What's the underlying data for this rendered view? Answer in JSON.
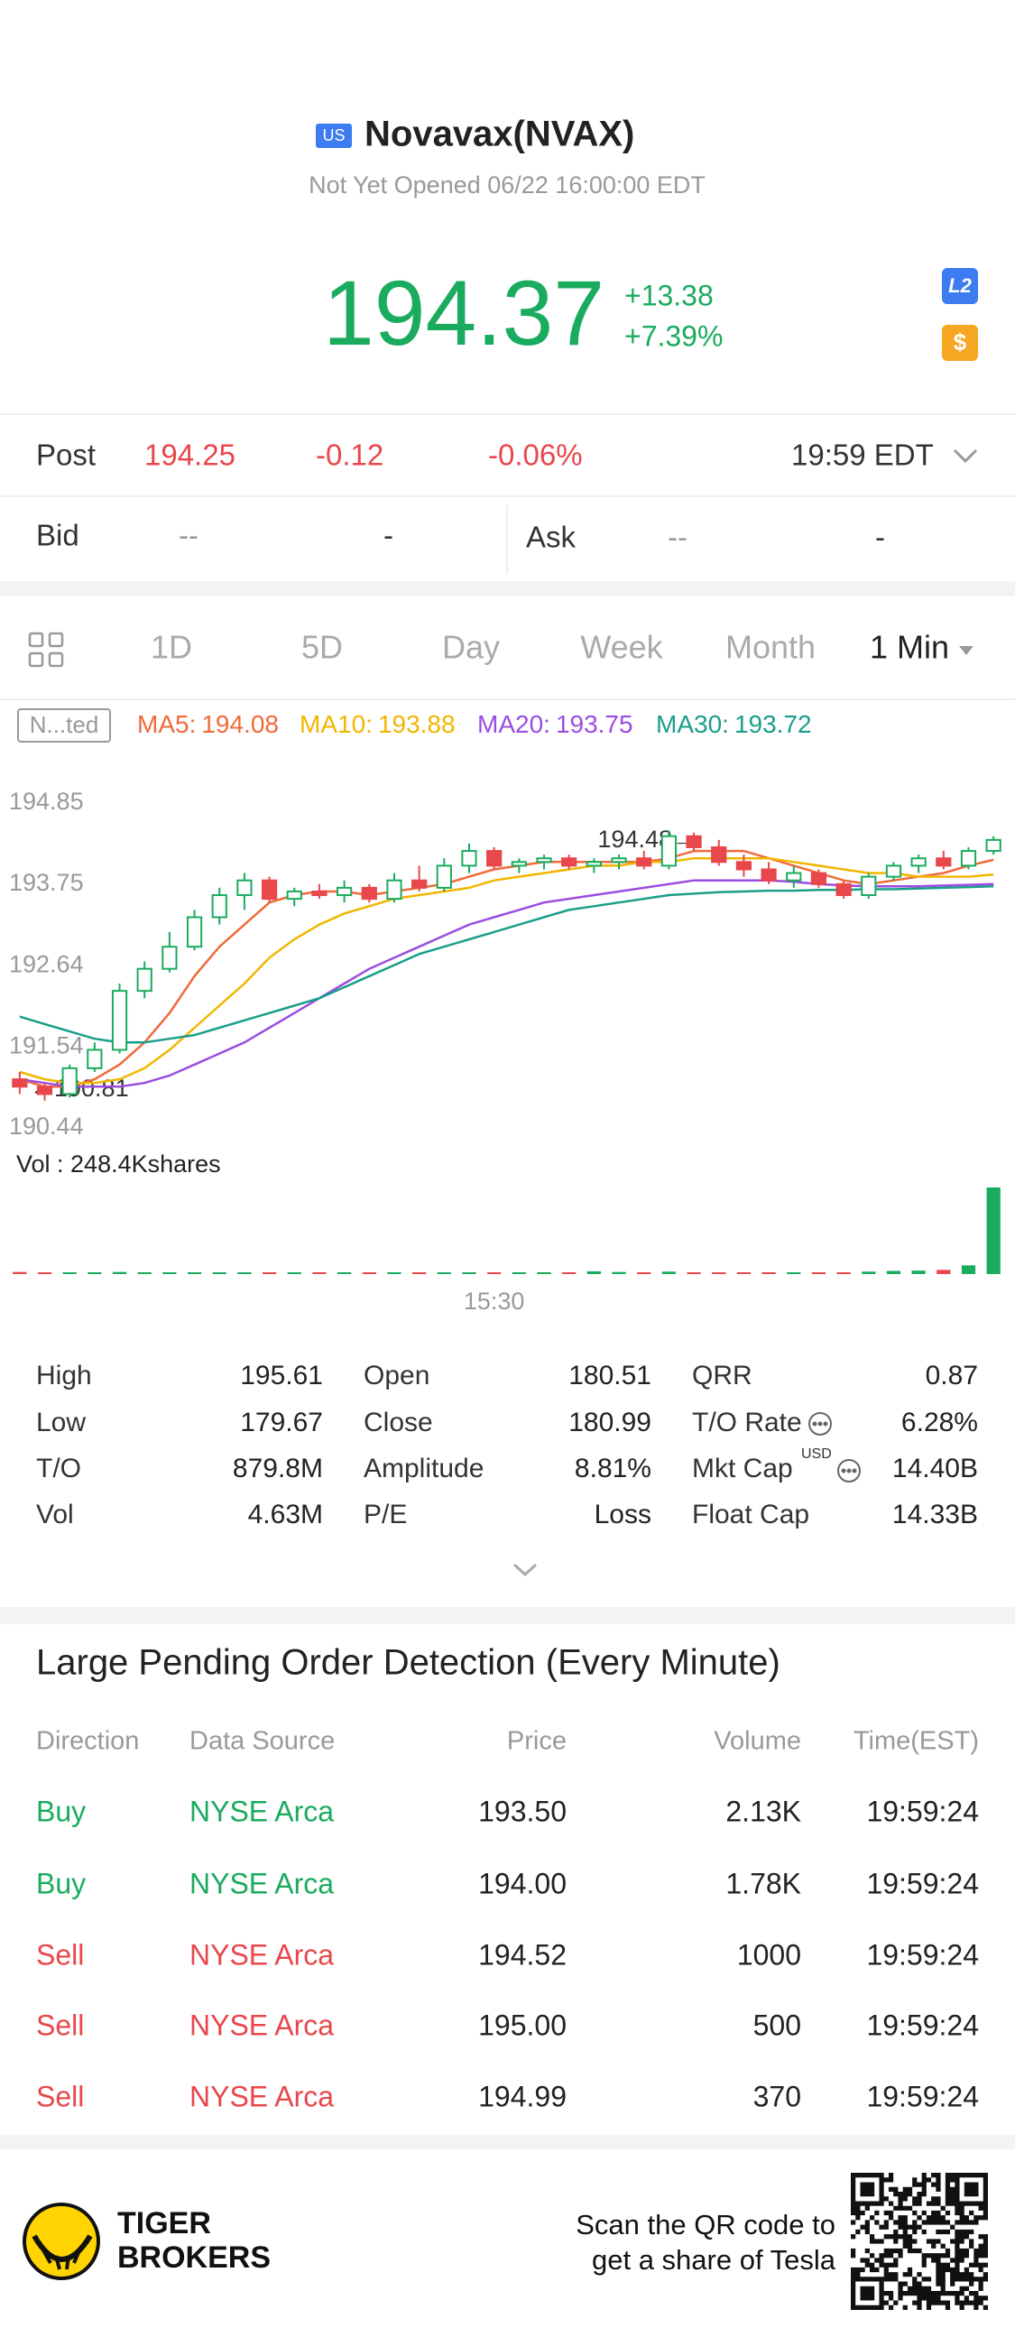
{
  "header": {
    "market": "US",
    "name": "Novavax(NVAX)",
    "status": "Not Yet Opened 06/22 16:00:00 EDT"
  },
  "quote": {
    "price": "194.37",
    "change": "+13.38",
    "change_pct": "+7.39%",
    "badges": [
      "L2",
      "$"
    ]
  },
  "post": {
    "label": "Post",
    "price": "194.25",
    "change": "-0.12",
    "change_pct": "-0.06%",
    "time": "19:59 EDT"
  },
  "bidask": {
    "bid_label": "Bid",
    "bid_price": "--",
    "bid_size": "-",
    "ask_label": "Ask",
    "ask_price": "--",
    "ask_size": "-"
  },
  "tabs": [
    "1D",
    "5D",
    "Day",
    "Week",
    "Month",
    "1 Min"
  ],
  "chart_data": {
    "type": "candlestick",
    "tag": "N...ted",
    "categories": [
      null,
      null,
      null,
      null,
      null,
      null,
      null,
      null,
      null,
      null,
      null,
      null,
      null,
      null,
      null,
      null,
      null,
      null,
      null,
      "15:30",
      null,
      null,
      null,
      null,
      null,
      null,
      null,
      null,
      null,
      null,
      null,
      null,
      null,
      null,
      null,
      null,
      null,
      null,
      null,
      null
    ],
    "open": [
      191.1,
      191.0,
      190.9,
      191.25,
      191.5,
      192.3,
      192.6,
      192.9,
      193.3,
      193.6,
      193.8,
      193.55,
      193.65,
      193.6,
      193.7,
      193.55,
      193.8,
      193.7,
      194.0,
      194.2,
      194.0,
      194.05,
      194.1,
      194.0,
      194.05,
      194.1,
      194.0,
      194.4,
      194.25,
      194.05,
      193.95,
      193.8,
      193.9,
      193.75,
      193.6,
      193.85,
      194.0,
      194.1,
      194.0,
      194.2
    ],
    "high": [
      191.2,
      191.05,
      191.3,
      191.6,
      192.4,
      192.7,
      193.1,
      193.4,
      193.7,
      193.9,
      193.85,
      193.7,
      193.75,
      193.8,
      193.75,
      193.9,
      194.0,
      194.1,
      194.3,
      194.25,
      194.1,
      194.15,
      194.15,
      194.1,
      194.15,
      194.2,
      194.48,
      194.45,
      194.35,
      194.15,
      194.05,
      194.0,
      193.95,
      193.8,
      193.9,
      194.05,
      194.15,
      194.2,
      194.25,
      194.4
    ],
    "low": [
      190.9,
      190.81,
      190.85,
      191.2,
      191.45,
      192.2,
      192.55,
      192.85,
      193.2,
      193.4,
      193.5,
      193.45,
      193.55,
      193.5,
      193.5,
      193.5,
      193.65,
      193.65,
      193.9,
      193.95,
      193.9,
      193.95,
      193.95,
      193.9,
      193.95,
      193.95,
      193.95,
      194.2,
      194.0,
      193.85,
      193.75,
      193.7,
      193.7,
      193.55,
      193.55,
      193.8,
      193.9,
      193.95,
      193.95,
      194.15
    ],
    "close": [
      191.0,
      190.9,
      191.25,
      191.5,
      192.3,
      192.6,
      192.9,
      193.3,
      193.6,
      193.8,
      193.55,
      193.65,
      193.6,
      193.7,
      193.55,
      193.8,
      193.7,
      194.0,
      194.2,
      194.0,
      194.05,
      194.1,
      194.0,
      194.05,
      194.1,
      194.0,
      194.4,
      194.25,
      194.05,
      193.95,
      193.8,
      193.9,
      193.75,
      193.6,
      193.85,
      194.0,
      194.1,
      194.0,
      194.2,
      194.35
    ],
    "up_color": "#1aab5f",
    "down_color": "#e8474b",
    "series": [
      {
        "name": "MA5:",
        "current": 194.08,
        "color": "#f06a3a",
        "values": [
          191.1,
          191.0,
          191.0,
          191.1,
          191.3,
          191.6,
          192.0,
          192.5,
          192.9,
          193.2,
          193.5,
          193.6,
          193.65,
          193.65,
          193.6,
          193.65,
          193.7,
          193.75,
          193.85,
          193.95,
          194.0,
          194.05,
          194.05,
          194.05,
          194.05,
          194.05,
          194.1,
          194.2,
          194.2,
          194.2,
          194.1,
          194.0,
          193.9,
          193.8,
          193.75,
          193.8,
          193.85,
          193.9,
          194.0,
          194.08
        ]
      },
      {
        "name": "MA10:",
        "current": 193.88,
        "color": "#f2b600",
        "values": [
          191.2,
          191.1,
          191.05,
          191.05,
          191.1,
          191.25,
          191.5,
          191.8,
          192.1,
          192.4,
          192.75,
          193.0,
          193.2,
          193.35,
          193.45,
          193.55,
          193.6,
          193.65,
          193.7,
          193.8,
          193.85,
          193.9,
          193.95,
          194.0,
          194.0,
          194.05,
          194.05,
          194.1,
          194.1,
          194.1,
          194.1,
          194.05,
          194.0,
          193.95,
          193.9,
          193.9,
          193.85,
          193.85,
          193.85,
          193.88
        ]
      },
      {
        "name": "MA20:",
        "current": 193.75,
        "color": "#9b4de0",
        "values": [
          191.1,
          191.05,
          191.0,
          191.0,
          191.0,
          191.05,
          191.15,
          191.3,
          191.45,
          191.6,
          191.8,
          192.0,
          192.2,
          192.4,
          192.6,
          192.75,
          192.9,
          193.05,
          193.2,
          193.3,
          193.4,
          193.5,
          193.55,
          193.6,
          193.65,
          193.7,
          193.75,
          193.8,
          193.8,
          193.8,
          193.8,
          193.78,
          193.75,
          193.73,
          193.72,
          193.72,
          193.72,
          193.73,
          193.74,
          193.75
        ]
      },
      {
        "name": "MA30:",
        "current": 193.72,
        "color": "#1a9e8a",
        "values": [
          191.95,
          191.85,
          191.75,
          191.65,
          191.6,
          191.6,
          191.65,
          191.7,
          191.8,
          191.9,
          192.0,
          192.1,
          192.2,
          192.35,
          192.5,
          192.65,
          192.8,
          192.9,
          193.0,
          193.1,
          193.2,
          193.3,
          193.4,
          193.45,
          193.5,
          193.55,
          193.6,
          193.62,
          193.64,
          193.65,
          193.66,
          193.66,
          193.67,
          193.67,
          193.68,
          193.68,
          193.69,
          193.7,
          193.71,
          193.72
        ]
      }
    ],
    "ylim": [
      190.44,
      194.85
    ],
    "yticks": [
      194.85,
      193.75,
      192.64,
      191.54,
      190.44
    ],
    "grid": false,
    "max_label": "194.48→",
    "min_label": "←190.81",
    "volume_label": "Vol  : 248.4Kshares",
    "volume": [
      6,
      5,
      4,
      5,
      6,
      5,
      4,
      5,
      4,
      3,
      4,
      3,
      3,
      2,
      3,
      3,
      4,
      3,
      3,
      4,
      3,
      3,
      5,
      8,
      6,
      4,
      7,
      4,
      3,
      3,
      4,
      3,
      4,
      5,
      7,
      9,
      10,
      12,
      25,
      248.4
    ]
  },
  "stats": {
    "columns": [
      [
        {
          "label": "High",
          "value": "195.61"
        },
        {
          "label": "Low",
          "value": "179.67"
        },
        {
          "label": "T/O",
          "value": "879.8M"
        },
        {
          "label": "Vol",
          "value": "4.63M"
        }
      ],
      [
        {
          "label": "Open",
          "value": "180.51"
        },
        {
          "label": "Close",
          "value": "180.99"
        },
        {
          "label": "Amplitude",
          "value": "8.81%"
        },
        {
          "label": "P/E",
          "value": "Loss"
        }
      ],
      [
        {
          "label": "QRR",
          "value": "0.87"
        },
        {
          "label": "T/O Rate",
          "value": "6.28%"
        },
        {
          "label": "Mkt Cap",
          "value": "14.40B",
          "note": "USD"
        },
        {
          "label": "Float Cap",
          "value": "14.33B"
        }
      ]
    ]
  },
  "table": {
    "title": "Large Pending Order Detection (Every Minute)",
    "columns": [
      "Direction",
      "Data Source",
      "Price",
      "Volume",
      "Time(EST)"
    ],
    "rows": [
      [
        "Buy",
        "NYSE Arca",
        "193.50",
        "2.13K",
        "19:59:24"
      ],
      [
        "Buy",
        "NYSE Arca",
        "194.00",
        "1.78K",
        "19:59:24"
      ],
      [
        "Sell",
        "NYSE Arca",
        "194.52",
        "1000",
        "19:59:24"
      ],
      [
        "Sell",
        "NYSE Arca",
        "195.00",
        "500",
        "19:59:24"
      ],
      [
        "Sell",
        "NYSE Arca",
        "194.99",
        "370",
        "19:59:24"
      ]
    ],
    "row_colors": [
      "#1aab5f",
      "#1aab5f",
      "#e8474b",
      "#e8474b",
      "#e8474b"
    ]
  },
  "footer": {
    "brand": [
      "TIGER",
      "BROKERS"
    ],
    "text": [
      "Scan the QR code to",
      "get a share of Tesla"
    ]
  }
}
